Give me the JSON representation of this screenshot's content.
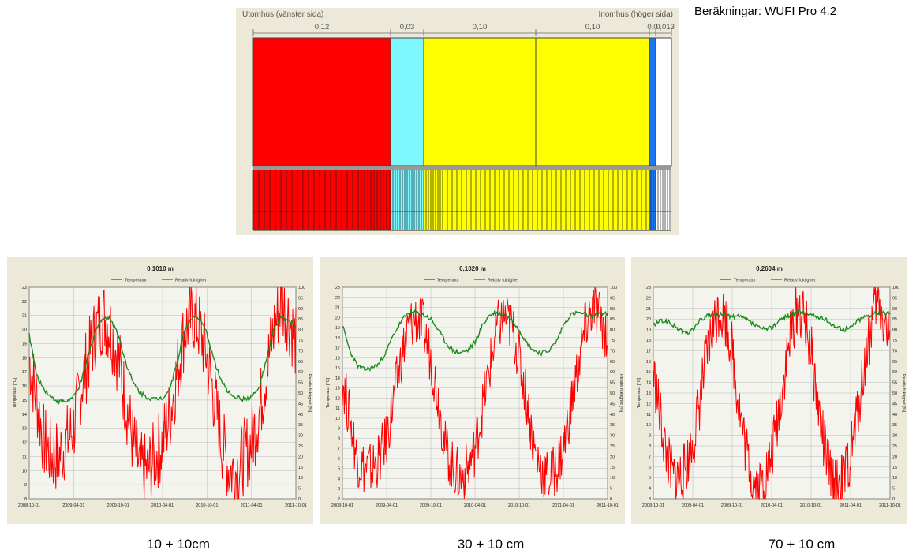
{
  "header": {
    "credit": "Beräkningar: WUFI Pro 4.2"
  },
  "assembly": {
    "outside_label": "Utomhus (vänster sida)",
    "inside_label": "Inomhus (höger sida)",
    "layers": [
      {
        "thickness": "0,12",
        "color": "#ff0000"
      },
      {
        "thickness": "0,03",
        "color": "#7ff7ff"
      },
      {
        "thickness": "0,10",
        "color": "#ffff00"
      },
      {
        "thickness": "0,10",
        "color": "#ffff00"
      },
      {
        "thickness": "0,0",
        "color": "#1c78f0"
      },
      {
        "thickness": "0,013",
        "color": "#ffffff"
      }
    ]
  },
  "colors": {
    "temperature": "#ff0000",
    "humidity": "#1a8a1a",
    "panel_bg": "#ece9d8",
    "plot_bg": "#f4f4ee"
  },
  "chart_data": [
    {
      "type": "line",
      "title": "0,1010 m",
      "caption": "10 + 10cm",
      "legend": [
        "Temperatur",
        "Relativ fuktighet"
      ],
      "ylabel_left": "Temperatur [°C]",
      "ylabel_right": "Relativ fuktighet [%]",
      "ylim_left": [
        8,
        23
      ],
      "ylim_right": [
        0,
        100
      ],
      "x_ticks": [
        "2008-10-01",
        "2009-04-01",
        "2009-10-01",
        "2010-04-01",
        "2010-10-01",
        "2011-04-01",
        "2011-10-01"
      ],
      "series": [
        {
          "name": "Temperatur",
          "axis": "left",
          "y": [
            18,
            15,
            12,
            11,
            11,
            12,
            13,
            16,
            18,
            20,
            21,
            20,
            18,
            15,
            12,
            10,
            10,
            11,
            12,
            14,
            17,
            20,
            21,
            20,
            18,
            15,
            12,
            10,
            10,
            11,
            12,
            14,
            17,
            20,
            22,
            21,
            19
          ]
        },
        {
          "name": "Relativ fuktighet",
          "axis": "right",
          "y": [
            78,
            58,
            52,
            48,
            46,
            46,
            48,
            55,
            68,
            80,
            86,
            85,
            78,
            65,
            55,
            50,
            48,
            47,
            48,
            52,
            65,
            80,
            86,
            85,
            78,
            65,
            55,
            50,
            48,
            47,
            48,
            52,
            65,
            80,
            86,
            84,
            82
          ]
        }
      ]
    },
    {
      "type": "line",
      "title": "0,1020 m",
      "caption": "30 + 10 cm",
      "legend": [
        "Temperatur",
        "Relativ fuktighet"
      ],
      "ylabel_left": "Temperatur [°C]",
      "ylabel_right": "Relativ fuktighet [%]",
      "ylim_left": [
        2,
        23
      ],
      "ylim_right": [
        0,
        100
      ],
      "x_ticks": [
        "2008-10-01",
        "2009-04-01",
        "2009-10-01",
        "2010-04-01",
        "2010-10-01",
        "2011-04-01",
        "2011-10-01"
      ],
      "series": [
        {
          "name": "Temperatur",
          "axis": "left",
          "y": [
            14,
            10,
            6,
            5,
            5,
            6,
            8,
            12,
            16,
            19,
            20,
            19,
            16,
            12,
            7,
            5,
            4,
            5,
            7,
            11,
            15,
            19,
            20,
            19,
            16,
            12,
            7,
            5,
            4,
            5,
            7,
            11,
            15,
            19,
            21,
            20,
            18
          ]
        },
        {
          "name": "Relativ fuktighet",
          "axis": "right",
          "y": [
            82,
            70,
            63,
            61,
            62,
            64,
            70,
            78,
            84,
            88,
            88,
            87,
            85,
            80,
            74,
            70,
            69,
            70,
            74,
            82,
            87,
            88,
            87,
            85,
            80,
            74,
            70,
            69,
            70,
            74,
            82,
            87,
            88,
            87,
            86,
            88,
            87
          ]
        }
      ]
    },
    {
      "type": "line",
      "title": "0,2604 m",
      "caption": "70 + 10 cm",
      "legend": [
        "Temperatur",
        "Relativ fuktighet"
      ],
      "ylabel_left": "Temperatur [°C]",
      "ylabel_right": "Relativ fuktighet [%]",
      "ylim_left": [
        3,
        23
      ],
      "ylim_right": [
        0,
        100
      ],
      "x_ticks": [
        "2008-10-01",
        "2009-04-01",
        "2009-10-01",
        "2010-04-01",
        "2010-10-01",
        "2011-04-01",
        "2011-10-01"
      ],
      "series": [
        {
          "name": "Temperatur",
          "axis": "left",
          "y": [
            15,
            11,
            7,
            5,
            5,
            6,
            8,
            12,
            16,
            19,
            21,
            20,
            17,
            12,
            8,
            5,
            4,
            5,
            7,
            11,
            15,
            19,
            21,
            20,
            17,
            12,
            8,
            5,
            4,
            5,
            7,
            11,
            15,
            19,
            22,
            20,
            18
          ]
        },
        {
          "name": "Relativ fuktighet",
          "axis": "right",
          "y": [
            82,
            84,
            84,
            82,
            80,
            78,
            80,
            84,
            86,
            87,
            87,
            87,
            86,
            86,
            85,
            83,
            81,
            80,
            81,
            84,
            86,
            87,
            88,
            88,
            87,
            86,
            85,
            83,
            81,
            80,
            81,
            84,
            86,
            87,
            88,
            88,
            88
          ]
        }
      ]
    }
  ]
}
